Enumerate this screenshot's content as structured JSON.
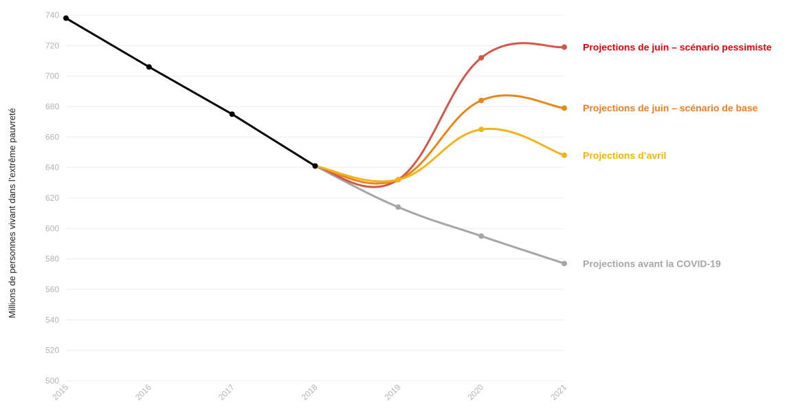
{
  "chart_data": {
    "type": "line",
    "title": "",
    "xlabel": "",
    "ylabel": "Millions de personnes vivant dans l’extrême pauvreté",
    "x": [
      "2015",
      "2016",
      "2017",
      "2018",
      "2019",
      "2020",
      "2021"
    ],
    "ylim": [
      500,
      740
    ],
    "yticks": [
      "500",
      "520",
      "540",
      "560",
      "580",
      "600",
      "620",
      "640",
      "660",
      "680",
      "700",
      "720",
      "740"
    ],
    "grid": "horizontal",
    "legend": "direct labels at right end of lines",
    "series": [
      {
        "name": "",
        "color": "#000000",
        "x": [
          "2015",
          "2016",
          "2017",
          "2018"
        ],
        "values": [
          738,
          706,
          675,
          641
        ]
      },
      {
        "name": "Projections avant la COVID-19",
        "color": "#a6a6a6",
        "x": [
          "2018",
          "2019",
          "2020",
          "2021"
        ],
        "values": [
          641,
          614,
          595,
          577
        ]
      },
      {
        "name": "Projections de juin – scénario pessimiste",
        "color": "#d1574a",
        "label_color": "#e8000b",
        "x": [
          "2018",
          "2019",
          "2020",
          "2021"
        ],
        "values": [
          641,
          632,
          712,
          719
        ]
      },
      {
        "name": "Projections de juin – scénario de base",
        "color": "#e8861a",
        "label_color": "#ef7c22",
        "x": [
          "2018",
          "2019",
          "2020",
          "2021"
        ],
        "values": [
          641,
          632,
          684,
          679
        ]
      },
      {
        "name": "Projections d’avril",
        "color": "#f2b31c",
        "label_color": "#f4b400",
        "x": [
          "2018",
          "2019",
          "2020",
          "2021"
        ],
        "values": [
          641,
          632,
          665,
          648
        ]
      }
    ]
  }
}
